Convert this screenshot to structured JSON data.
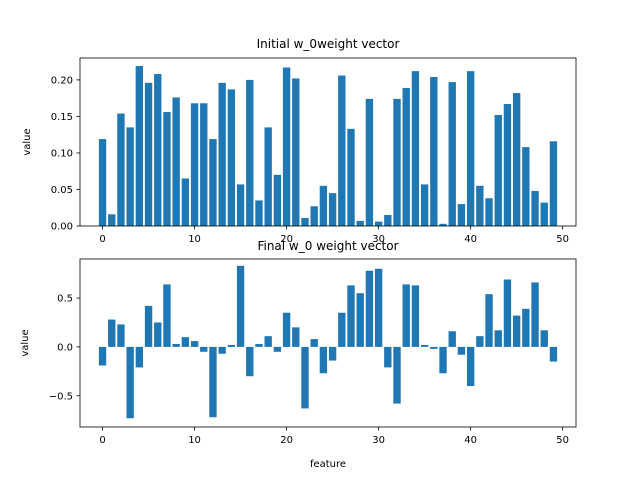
{
  "chart_data": [
    {
      "type": "bar",
      "title": "Initial w_0weight vector",
      "xlabel": "",
      "ylabel": "value",
      "xlim": [
        -2.45,
        51.45
      ],
      "ylim": [
        0,
        0.23
      ],
      "xticks": [
        0,
        10,
        20,
        30,
        40,
        50
      ],
      "xtick_labels": [
        "0",
        "10",
        "20",
        "30",
        "40",
        "50"
      ],
      "yticks": [
        0,
        0.05,
        0.1,
        0.15,
        0.2
      ],
      "ytick_labels": [
        "0.00",
        "0.05",
        "0.10",
        "0.15",
        "0.20"
      ],
      "grid": false,
      "color": "#1f77b4",
      "x": [
        0,
        1,
        2,
        3,
        4,
        5,
        6,
        7,
        8,
        9,
        10,
        11,
        12,
        13,
        14,
        15,
        16,
        17,
        18,
        19,
        20,
        21,
        22,
        23,
        24,
        25,
        26,
        27,
        28,
        29,
        30,
        31,
        32,
        33,
        34,
        35,
        36,
        37,
        38,
        39,
        40,
        41,
        42,
        43,
        44,
        45,
        46,
        47,
        48,
        49
      ],
      "values": [
        0.119,
        0.016,
        0.154,
        0.135,
        0.219,
        0.196,
        0.208,
        0.156,
        0.176,
        0.065,
        0.168,
        0.168,
        0.119,
        0.196,
        0.187,
        0.057,
        0.2,
        0.035,
        0.135,
        0.07,
        0.217,
        0.202,
        0.011,
        0.027,
        0.055,
        0.045,
        0.206,
        0.133,
        0.007,
        0.174,
        0.006,
        0.015,
        0.174,
        0.189,
        0.212,
        0.057,
        0.204,
        0.003,
        0.197,
        0.03,
        0.212,
        0.055,
        0.038,
        0.152,
        0.167,
        0.182,
        0.108,
        0.048,
        0.032,
        0.116
      ]
    },
    {
      "type": "bar",
      "title": "Final w_0 weight vector",
      "xlabel": "feature",
      "ylabel": "value",
      "xlim": [
        -2.45,
        51.45
      ],
      "ylim": [
        -0.82,
        0.9
      ],
      "xticks": [
        0,
        10,
        20,
        30,
        40,
        50
      ],
      "xtick_labels": [
        "0",
        "10",
        "20",
        "30",
        "40",
        "50"
      ],
      "yticks": [
        -0.5,
        0.0,
        0.5
      ],
      "ytick_labels": [
        "−0.5",
        "0.0",
        "0.5"
      ],
      "grid": false,
      "color": "#1f77b4",
      "x": [
        0,
        1,
        2,
        3,
        4,
        5,
        6,
        7,
        8,
        9,
        10,
        11,
        12,
        13,
        14,
        15,
        16,
        17,
        18,
        19,
        20,
        21,
        22,
        23,
        24,
        25,
        26,
        27,
        28,
        29,
        30,
        31,
        32,
        33,
        34,
        35,
        36,
        37,
        38,
        39,
        40,
        41,
        42,
        43,
        44,
        45,
        46,
        47,
        48,
        49
      ],
      "values": [
        -0.19,
        0.28,
        0.23,
        -0.73,
        -0.21,
        0.42,
        0.25,
        0.64,
        0.03,
        0.1,
        0.06,
        -0.05,
        -0.72,
        -0.07,
        0.02,
        0.83,
        -0.3,
        0.03,
        0.11,
        -0.05,
        0.35,
        0.2,
        -0.63,
        0.08,
        -0.27,
        -0.14,
        0.35,
        0.63,
        0.55,
        0.78,
        0.8,
        -0.21,
        -0.58,
        0.64,
        0.63,
        0.02,
        -0.02,
        -0.27,
        0.16,
        -0.08,
        -0.4,
        0.11,
        0.54,
        0.17,
        0.69,
        0.32,
        0.39,
        0.66,
        0.17,
        -0.15
      ]
    }
  ]
}
